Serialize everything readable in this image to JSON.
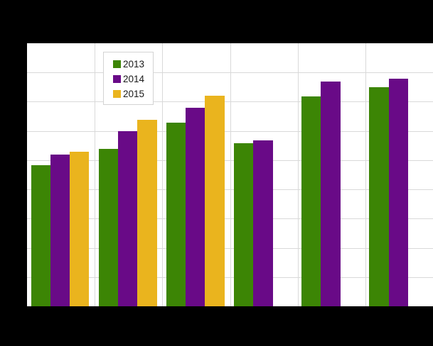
{
  "window": {
    "background": "#000000",
    "plot_background": "#ffffff",
    "gridline_color": "#d9d9d9"
  },
  "chart_data": {
    "type": "bar",
    "title": "",
    "xlabel": "",
    "ylabel": "",
    "x_tick_labels_visible": false,
    "y_tick_labels_visible": false,
    "grid": true,
    "legend_position": "top-left-inset",
    "categories": [
      "",
      "",
      "",
      "",
      "",
      ""
    ],
    "series": [
      {
        "name": "2013",
        "color": "#3C8505",
        "values": [
          4.82,
          5.39,
          6.29,
          5.59,
          7.18,
          7.49
        ]
      },
      {
        "name": "2014",
        "color": "#690A87",
        "values": [
          5.19,
          5.99,
          6.79,
          5.68,
          7.69,
          7.79
        ]
      },
      {
        "name": "2015",
        "color": "#EAB41E",
        "values": [
          5.29,
          6.38,
          7.2,
          null,
          null,
          null
        ]
      }
    ],
    "ylim": [
      0,
      9
    ],
    "y_gridline_step": 1
  }
}
